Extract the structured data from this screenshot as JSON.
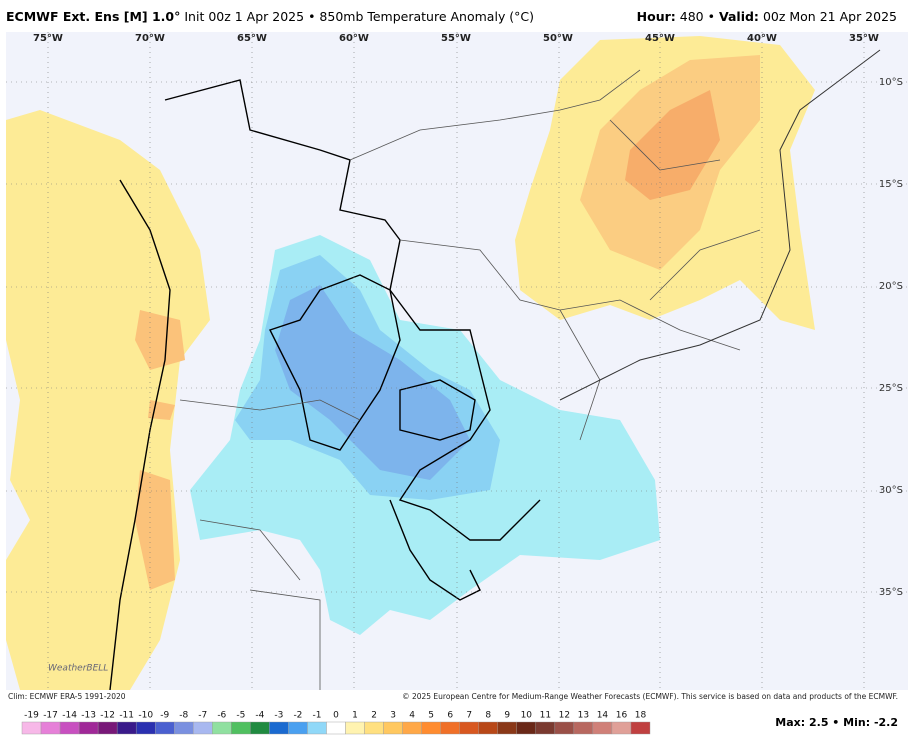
{
  "header": {
    "model": "ECMWF Ext. Ens [M] 1.0°",
    "init": "Init 00z 1 Apr 2025 • 850mb Temperature Anomaly (°C)",
    "hour_label": "Hour:",
    "hour": "480 •",
    "valid_label": "Valid:",
    "valid": "00z Mon 21 Apr 2025"
  },
  "map": {
    "lon_labels": [
      "75°W",
      "70°W",
      "65°W",
      "60°W",
      "55°W",
      "50°W",
      "45°W",
      "40°W",
      "35°W"
    ],
    "lat_labels": [
      "10°S",
      "15°S",
      "20°S",
      "25°S",
      "30°S",
      "35°S"
    ],
    "watermark": "WeatherBELL"
  },
  "footer": {
    "climo": "Clim: ECMWF ERA-5 1991-2020",
    "copyright": "© 2025 European Centre for Medium-Range Weather Forecasts (ECMWF). This service is based on data and products of the ECMWF.",
    "max_min": "Max: 2.5 • Min: -2.2"
  },
  "legend": {
    "labels": [
      -19,
      -17,
      -14,
      -13,
      -12,
      -11,
      -10,
      -9,
      -8,
      -7,
      -6,
      -5,
      -4,
      -3,
      -2,
      -1,
      0,
      1,
      2,
      3,
      4,
      5,
      6,
      7,
      8,
      9,
      10,
      11,
      12,
      13,
      14,
      16,
      18
    ],
    "colors": [
      "#f7b8e8",
      "#e680d8",
      "#c850c0",
      "#a02898",
      "#781878",
      "#3a1a8a",
      "#2a30b0",
      "#4a60d0",
      "#7a90e0",
      "#a8b8f0",
      "#90e0a0",
      "#50c060",
      "#208a40",
      "#1a6ad0",
      "#4aa0f0",
      "#90d8f8",
      "#ffffff",
      "#fff3b0",
      "#ffe080",
      "#ffc860",
      "#ffa848",
      "#ff8c30",
      "#f07028",
      "#d85820",
      "#b84818",
      "#8a3818",
      "#6a2818",
      "#7a3a30",
      "#9a5048",
      "#b86860",
      "#d08078",
      "#e0a098",
      "#c04040"
    ]
  }
}
